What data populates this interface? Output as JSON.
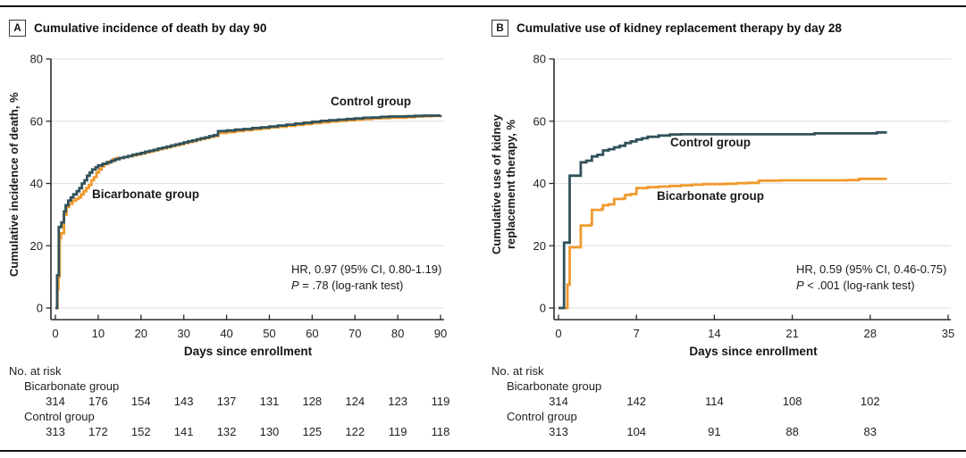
{
  "chart_data": [
    {
      "type": "line",
      "subtype": "step-cumulative-incidence",
      "panel_letter": "A",
      "title": "Cumulative incidence of death by day 90",
      "ylabel_line1": "Cumulative incidence of death, %",
      "ylabel_line2": "",
      "xlabel": "Days since enrollment",
      "xlim": [
        0,
        90
      ],
      "ylim": [
        0,
        80
      ],
      "xticks": [
        0,
        10,
        20,
        30,
        40,
        50,
        60,
        70,
        80,
        90
      ],
      "yticks": [
        0,
        20,
        40,
        60,
        80
      ],
      "grid": "horizontal",
      "annotation": {
        "line1": "HR, 0.97 (95% CI, 0.80-1.19)",
        "p_italic": "P",
        "p_rest": " = .78 (log-rank test)"
      },
      "series": [
        {
          "name": "Bicarbonate group",
          "color": "#F09A2C",
          "points": [
            [
              0,
              0
            ],
            [
              0.5,
              6
            ],
            [
              0.7,
              10
            ],
            [
              1,
              22.5
            ],
            [
              1.3,
              24
            ],
            [
              2,
              30
            ],
            [
              2.6,
              32.5
            ],
            [
              3.2,
              33.5
            ],
            [
              4,
              34.5
            ],
            [
              4.8,
              35
            ],
            [
              5.4,
              35.5
            ],
            [
              6,
              36.5
            ],
            [
              6.6,
              37.5
            ],
            [
              7.2,
              38.5
            ],
            [
              7.8,
              39.5
            ],
            [
              8.4,
              41
            ],
            [
              9,
              42
            ],
            [
              9.6,
              43.5
            ],
            [
              10.2,
              44.5
            ],
            [
              10.8,
              45.5
            ],
            [
              11.4,
              46.3
            ],
            [
              12.4,
              47
            ],
            [
              13.4,
              47.8
            ],
            [
              14.4,
              48.2
            ],
            [
              16,
              48.5
            ],
            [
              17,
              48.8
            ],
            [
              18,
              49
            ],
            [
              19,
              49.3
            ],
            [
              20,
              49.6
            ],
            [
              21,
              50
            ],
            [
              22,
              50.3
            ],
            [
              23,
              50.6
            ],
            [
              24,
              51
            ],
            [
              25,
              51.3
            ],
            [
              26,
              51.6
            ],
            [
              27,
              52
            ],
            [
              28,
              52.3
            ],
            [
              29,
              52.6
            ],
            [
              30,
              53
            ],
            [
              31,
              53.3
            ],
            [
              32,
              53.6
            ],
            [
              33,
              54
            ],
            [
              34,
              54.3
            ],
            [
              35,
              54.6
            ],
            [
              36,
              55
            ],
            [
              37,
              55.2
            ],
            [
              38,
              56.2
            ],
            [
              40,
              56.5
            ],
            [
              42,
              56.8
            ],
            [
              44,
              57.1
            ],
            [
              46,
              57.4
            ],
            [
              48,
              57.7
            ],
            [
              50,
              58
            ],
            [
              52,
              58.2
            ],
            [
              54,
              58.5
            ],
            [
              56,
              58.8
            ],
            [
              58,
              59.1
            ],
            [
              60,
              59.4
            ],
            [
              62,
              59.6
            ],
            [
              64,
              59.9
            ],
            [
              66,
              60.1
            ],
            [
              68,
              60.3
            ],
            [
              70,
              60.5
            ],
            [
              72,
              60.7
            ],
            [
              74,
              60.9
            ],
            [
              76,
              61
            ],
            [
              78,
              61.1
            ],
            [
              80,
              61.1
            ],
            [
              82,
              61.3
            ],
            [
              84,
              61.5
            ],
            [
              86,
              61.6
            ],
            [
              88,
              61.7
            ],
            [
              90,
              61.9
            ]
          ]
        },
        {
          "name": "Control group",
          "color": "#31525B",
          "points": [
            [
              0,
              0
            ],
            [
              0.4,
              10.5
            ],
            [
              0.8,
              26
            ],
            [
              1.4,
              27.5
            ],
            [
              2,
              31
            ],
            [
              2.4,
              33
            ],
            [
              3,
              34.5
            ],
            [
              3.6,
              35.5
            ],
            [
              4.2,
              36.5
            ],
            [
              5,
              37.5
            ],
            [
              5.6,
              38.5
            ],
            [
              6.2,
              40
            ],
            [
              6.8,
              41
            ],
            [
              7.4,
              42.5
            ],
            [
              8,
              43.5
            ],
            [
              8.6,
              44.5
            ],
            [
              9.4,
              45.2
            ],
            [
              10,
              45.8
            ],
            [
              11,
              46.3
            ],
            [
              12,
              46.8
            ],
            [
              13,
              47.3
            ],
            [
              14,
              47.8
            ],
            [
              15,
              48.2
            ],
            [
              16,
              48.5
            ],
            [
              17,
              48.8
            ],
            [
              18,
              49.2
            ],
            [
              19,
              49.5
            ],
            [
              20,
              49.8
            ],
            [
              21,
              50.2
            ],
            [
              22,
              50.5
            ],
            [
              23,
              50.8
            ],
            [
              24,
              51.2
            ],
            [
              25,
              51.5
            ],
            [
              26,
              51.8
            ],
            [
              27,
              52.2
            ],
            [
              28,
              52.5
            ],
            [
              29,
              52.8
            ],
            [
              30,
              53.2
            ],
            [
              31,
              53.5
            ],
            [
              32,
              53.8
            ],
            [
              33,
              54.2
            ],
            [
              34,
              54.5
            ],
            [
              35,
              54.8
            ],
            [
              36,
              55.2
            ],
            [
              37,
              55.5
            ],
            [
              38,
              56.8
            ],
            [
              40,
              57
            ],
            [
              42,
              57.3
            ],
            [
              44,
              57.5
            ],
            [
              46,
              57.8
            ],
            [
              48,
              58
            ],
            [
              50,
              58.3
            ],
            [
              52,
              58.6
            ],
            [
              54,
              58.9
            ],
            [
              56,
              59.2
            ],
            [
              58,
              59.5
            ],
            [
              60,
              59.8
            ],
            [
              62,
              60.1
            ],
            [
              64,
              60.3
            ],
            [
              66,
              60.5
            ],
            [
              68,
              60.7
            ],
            [
              70,
              60.9
            ],
            [
              72,
              61.1
            ],
            [
              74,
              61.2
            ],
            [
              76,
              61.4
            ],
            [
              78,
              61.5
            ],
            [
              80,
              61.5
            ],
            [
              82,
              61.6
            ],
            [
              84,
              61.7
            ],
            [
              86,
              61.8
            ],
            [
              88,
              61.8
            ],
            [
              90,
              61.9
            ]
          ]
        }
      ],
      "risk_table": {
        "title": "No. at risk",
        "days": [
          0,
          10,
          20,
          30,
          40,
          50,
          60,
          70,
          80,
          90
        ],
        "groups": [
          {
            "name": "Bicarbonate group",
            "counts": [
              314,
              176,
              154,
              143,
              137,
              131,
              128,
              124,
              123,
              119
            ]
          },
          {
            "name": "Control group",
            "counts": [
              313,
              172,
              152,
              141,
              132,
              130,
              125,
              122,
              119,
              118
            ]
          }
        ]
      }
    },
    {
      "type": "line",
      "subtype": "step-cumulative-incidence",
      "panel_letter": "B",
      "title": "Cumulative use of kidney replacement therapy by day 28",
      "ylabel_line1": "Cumulative use of kidney",
      "ylabel_line2": "replacement therapy, %",
      "xlabel": "Days since enrollment",
      "xlim": [
        0,
        35
      ],
      "ylim": [
        0,
        80
      ],
      "xticks": [
        0,
        7,
        14,
        21,
        28,
        35
      ],
      "yticks": [
        0,
        20,
        40,
        60,
        80
      ],
      "grid": "horizontal",
      "annotation": {
        "line1": "HR, 0.59 (95% CI, 0.46-0.75)",
        "p_italic": "P",
        "p_rest": " < .001 (log-rank test)"
      },
      "series": [
        {
          "name": "Bicarbonate group",
          "color": "#F09A2C",
          "points": [
            [
              0,
              0
            ],
            [
              0.8,
              7.5
            ],
            [
              1,
              19.5
            ],
            [
              2,
              26.5
            ],
            [
              2.9,
              26.8
            ],
            [
              3,
              31.5
            ],
            [
              3.9,
              31.8
            ],
            [
              4,
              33
            ],
            [
              4.5,
              33.3
            ],
            [
              5,
              35
            ],
            [
              5.9,
              35.3
            ],
            [
              6,
              36.3
            ],
            [
              6.5,
              36.6
            ],
            [
              7,
              38.5
            ],
            [
              8,
              38.8
            ],
            [
              9,
              39
            ],
            [
              10,
              39.2
            ],
            [
              11,
              39.4
            ],
            [
              12,
              39.6
            ],
            [
              13,
              39.8
            ],
            [
              15,
              39.9
            ],
            [
              16,
              40.1
            ],
            [
              17,
              40.2
            ],
            [
              18,
              40.9
            ],
            [
              20,
              41
            ],
            [
              26,
              41.1
            ],
            [
              27,
              41.5
            ],
            [
              29.5,
              41.5
            ]
          ]
        },
        {
          "name": "Control group",
          "color": "#31525B",
          "points": [
            [
              0,
              0
            ],
            [
              0.5,
              21
            ],
            [
              1,
              42.5
            ],
            [
              2,
              46.8
            ],
            [
              2.5,
              47.3
            ],
            [
              3,
              48.7
            ],
            [
              3.5,
              49.2
            ],
            [
              4,
              50.6
            ],
            [
              4.5,
              51
            ],
            [
              5,
              51.6
            ],
            [
              5.5,
              52.1
            ],
            [
              6,
              53
            ],
            [
              6.5,
              53.5
            ],
            [
              7,
              54.1
            ],
            [
              7.5,
              54.5
            ],
            [
              8,
              55
            ],
            [
              9,
              55.4
            ],
            [
              10,
              55.7
            ],
            [
              11,
              55.8
            ],
            [
              22.5,
              55.8
            ],
            [
              23,
              56.1
            ],
            [
              28.3,
              56.1
            ],
            [
              28.6,
              56.4
            ],
            [
              29.5,
              56.4
            ]
          ]
        }
      ],
      "risk_table": {
        "title": "No. at risk",
        "days": [
          0,
          7,
          14,
          21,
          28
        ],
        "groups": [
          {
            "name": "Bicarbonate group",
            "counts": [
              314,
              142,
              114,
              108,
              102
            ]
          },
          {
            "name": "Control group",
            "counts": [
              313,
              104,
              91,
              88,
              83
            ]
          }
        ]
      }
    }
  ]
}
